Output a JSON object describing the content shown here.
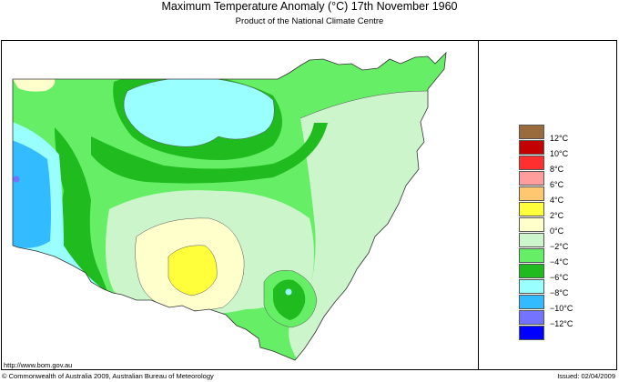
{
  "title": "Maximum Temperature Anomaly (°C)  17th November 1960",
  "subtitle": "Product of the National Climate Centre",
  "url": "http://www.bom.gov.au",
  "copyright": "© Commonwealth of Australia 2009, Australian Bureau of Meteorology",
  "issued": "Issued: 02/04/2009",
  "legend": {
    "items": [
      {
        "color": "#9a6b3c",
        "label": "12°C"
      },
      {
        "color": "#c40000",
        "label": "10°C"
      },
      {
        "color": "#ff2f2f",
        "label": "8°C"
      },
      {
        "color": "#ff9c9c",
        "label": "6°C"
      },
      {
        "color": "#ffc870",
        "label": "4°C"
      },
      {
        "color": "#ffff3c",
        "label": "2°C"
      },
      {
        "color": "#ffffcc",
        "label": "0°C"
      },
      {
        "color": "#ccf5cc",
        "label": "−2°C"
      },
      {
        "color": "#66ee66",
        "label": "−4°C"
      },
      {
        "color": "#1fbb1f",
        "label": "−6°C"
      },
      {
        "color": "#99ffff",
        "label": "−8°C"
      },
      {
        "color": "#33bbff",
        "label": "−10°C"
      },
      {
        "color": "#7373ff",
        "label": "−12°C"
      },
      {
        "color": "#0000ff",
        "label": ""
      }
    ]
  }
}
